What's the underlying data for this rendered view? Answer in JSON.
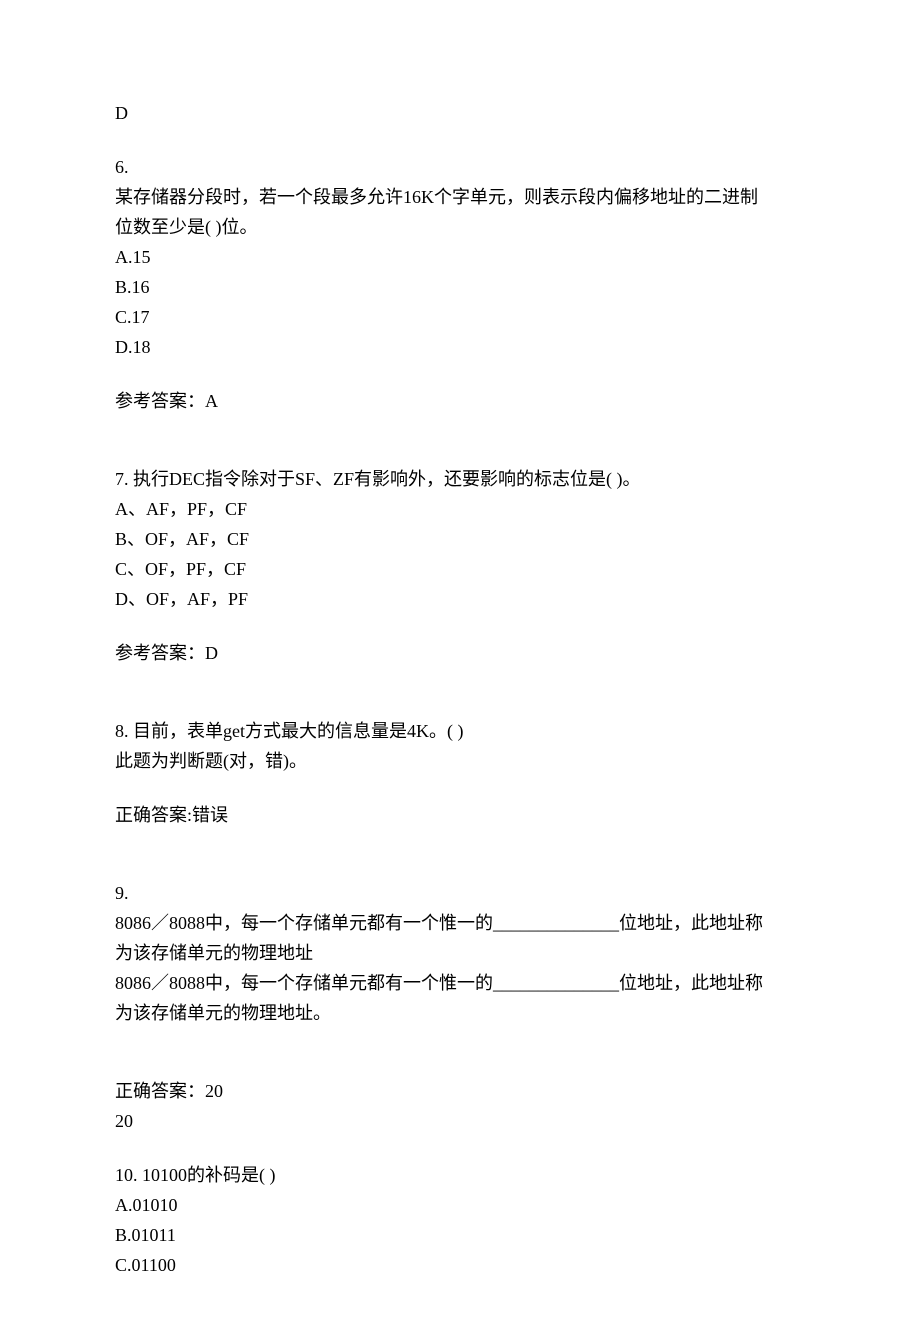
{
  "q5_answer": "D",
  "q6": {
    "number": "6.",
    "text_line1": "某存储器分段时，若一个段最多允许16K个字单元，则表示段内偏移地址的二进制",
    "text_line2": "位数至少是(  )位。",
    "optA": "A.15",
    "optB": "B.16",
    "optC": "C.17",
    "optD": "D.18",
    "answer_label": "参考答案：A"
  },
  "q7": {
    "number_text": "7.  执行DEC指令除对于SF、ZF有影响外，还要影响的标志位是(  )。",
    "optA": "A、AF，PF，CF",
    "optB": "B、OF，AF，CF",
    "optC": "C、OF，PF，CF",
    "optD": "D、OF，AF，PF",
    "answer_label": "参考答案：D"
  },
  "q8": {
    "number_text": "8.  目前，表单get方式最大的信息量是4K。(  )",
    "hint": "此题为判断题(对，错)。",
    "answer_label": "正确答案:错误"
  },
  "q9": {
    "number": "9.",
    "text_line1": "8086／8088中，每一个存储单元都有一个惟一的______________位地址，此地址称",
    "text_line2": "为该存储单元的物理地址",
    "text_line3": "8086／8088中，每一个存储单元都有一个惟一的______________位地址，此地址称",
    "text_line4": "为该存储单元的物理地址。",
    "answer_label": "正确答案：20",
    "answer_line2": "20"
  },
  "q10": {
    "number_text": "10.  10100的补码是(  )",
    "optA": "A.01010",
    "optB": "B.01011",
    "optC": "C.01100"
  }
}
